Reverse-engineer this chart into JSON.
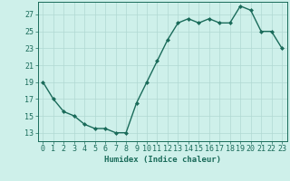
{
  "x": [
    0,
    1,
    2,
    3,
    4,
    5,
    6,
    7,
    8,
    9,
    10,
    11,
    12,
    13,
    14,
    15,
    16,
    17,
    18,
    19,
    20,
    21,
    22,
    23
  ],
  "y": [
    19,
    17,
    15.5,
    15,
    14,
    13.5,
    13.5,
    13,
    13,
    16.5,
    19,
    21.5,
    24,
    26,
    26.5,
    26,
    26.5,
    26,
    26,
    28,
    27.5,
    25,
    25,
    23
  ],
  "line_color": "#1a6b5a",
  "marker": "D",
  "marker_size": 2.0,
  "bg_color": "#cef0ea",
  "grid_color": "#b0d8d2",
  "xlabel": "Humidex (Indice chaleur)",
  "xlim": [
    -0.5,
    23.5
  ],
  "ylim": [
    12,
    28.5
  ],
  "yticks": [
    13,
    15,
    17,
    19,
    21,
    23,
    25,
    27
  ],
  "xticks": [
    0,
    1,
    2,
    3,
    4,
    5,
    6,
    7,
    8,
    9,
    10,
    11,
    12,
    13,
    14,
    15,
    16,
    17,
    18,
    19,
    20,
    21,
    22,
    23
  ],
  "font_color": "#1a6b5a",
  "linewidth": 1.0,
  "tick_fontsize": 6,
  "xlabel_fontsize": 6.5
}
